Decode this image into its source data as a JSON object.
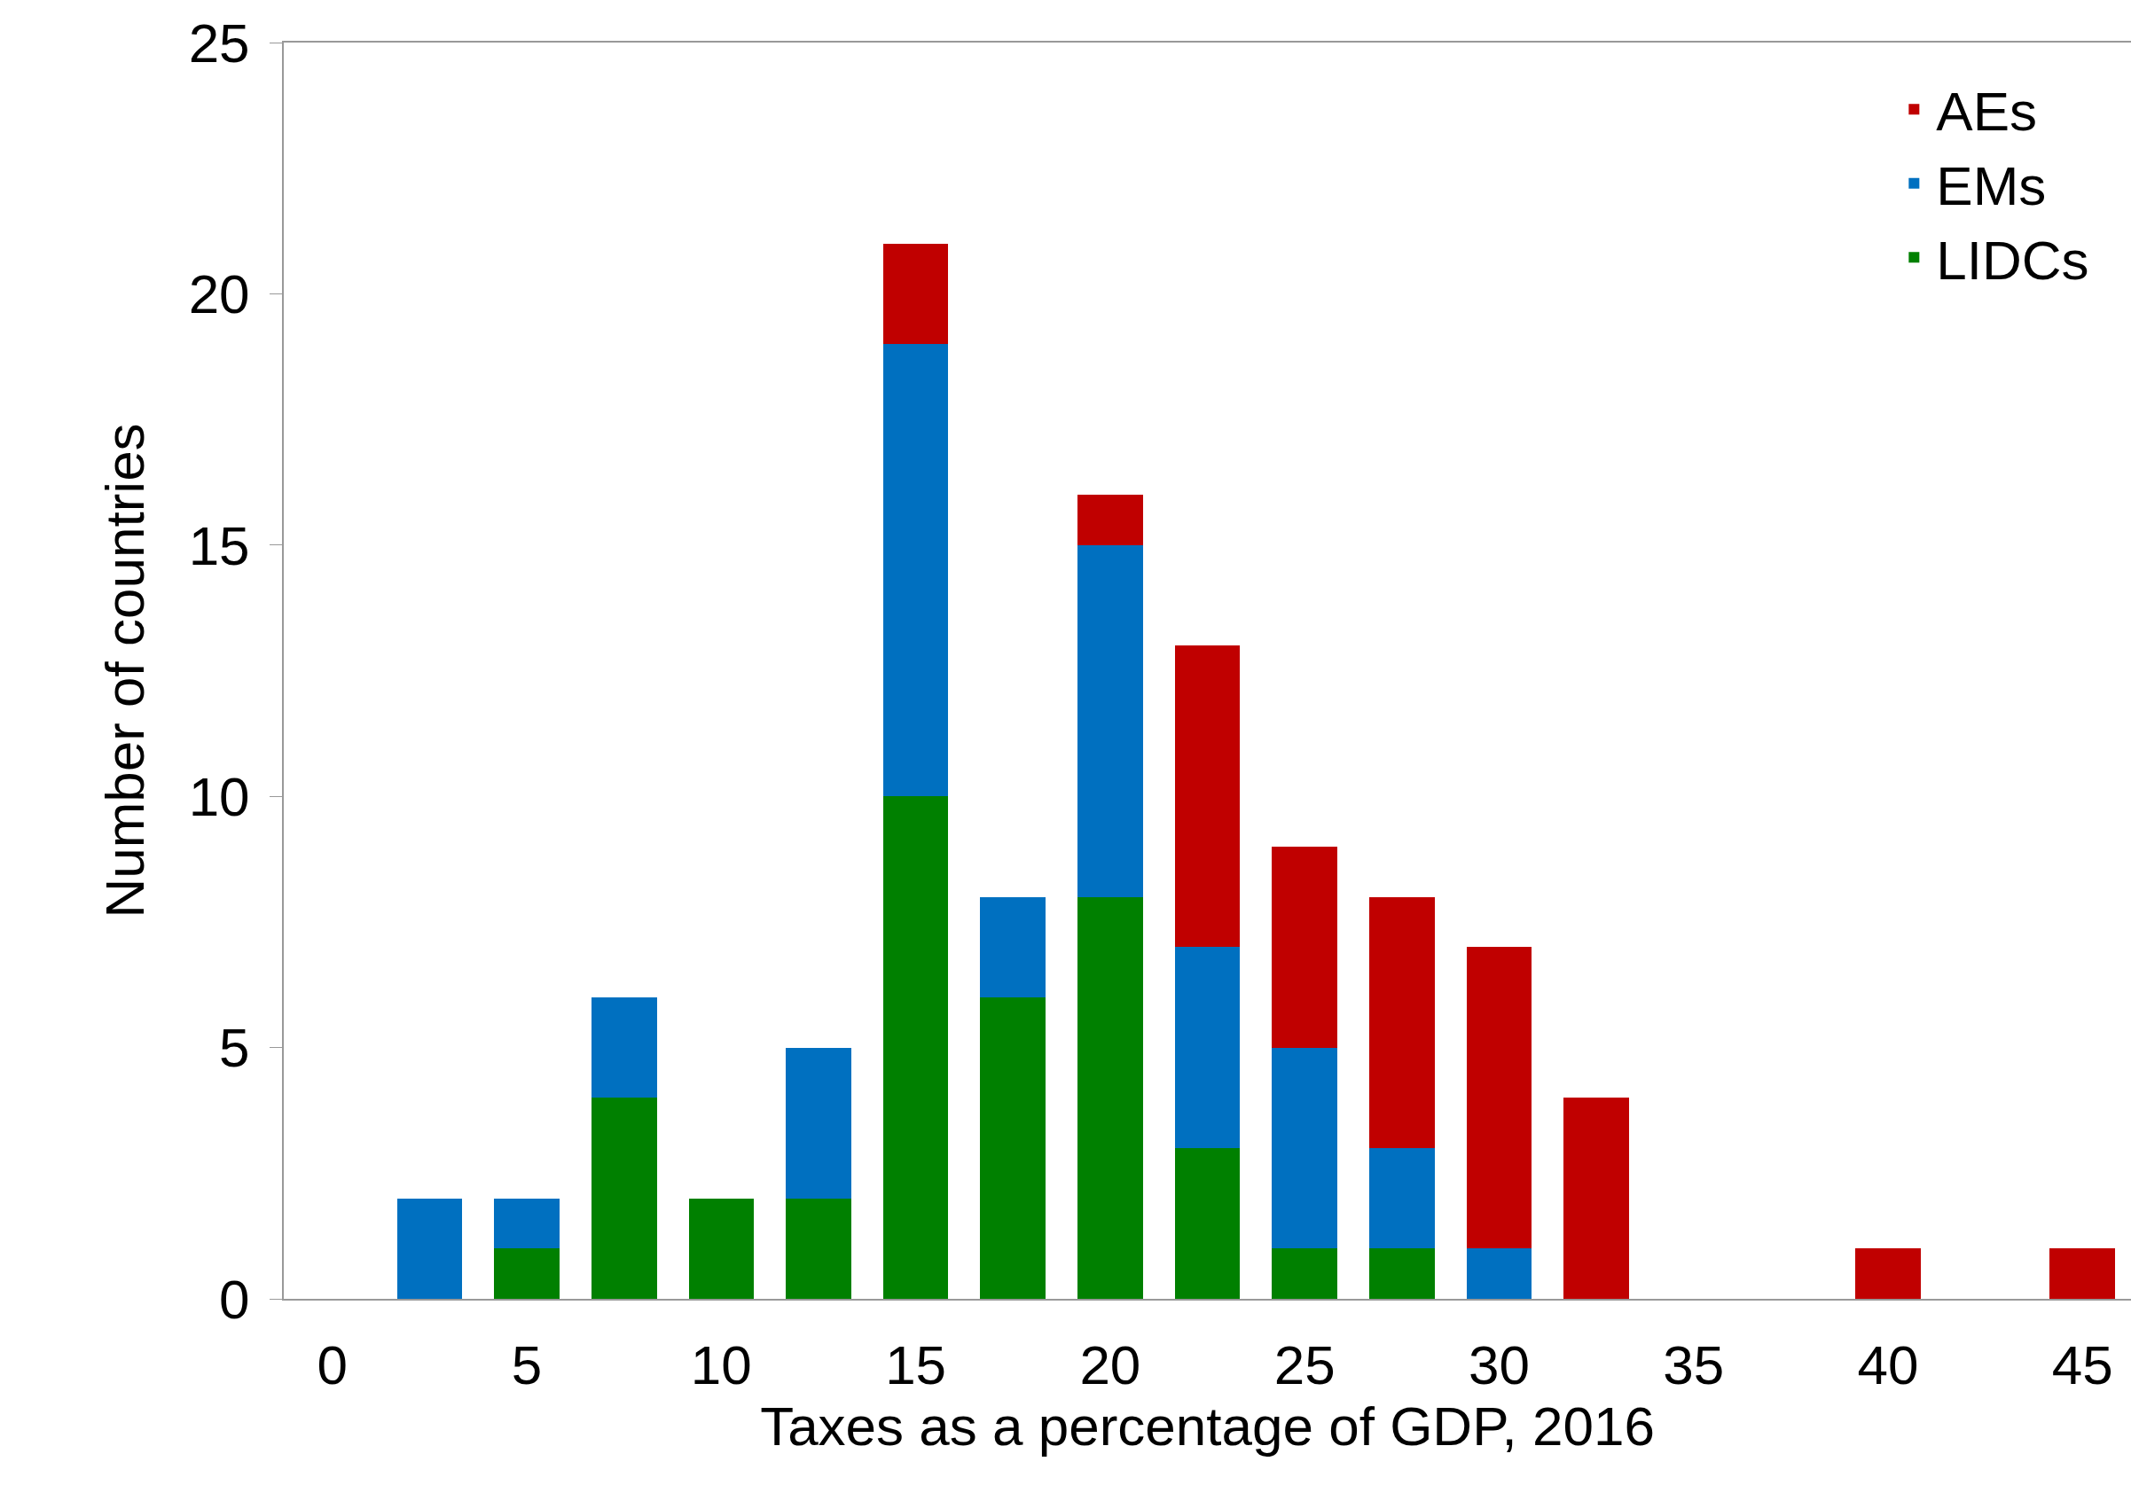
{
  "chart_data": {
    "type": "bar",
    "stacked": true,
    "xlabel": "Taxes as a percentage of GDP, 2016",
    "ylabel": "Number of countries",
    "x": [
      2.5,
      5,
      7.5,
      10,
      12.5,
      15,
      17.5,
      20,
      22.5,
      25,
      27.5,
      30,
      32.5,
      35,
      37.5,
      40,
      42.5,
      45
    ],
    "series": [
      {
        "name": "LIDCs",
        "color": "#008000",
        "values": [
          0,
          1,
          4,
          2,
          2,
          10,
          6,
          8,
          3,
          1,
          1,
          0,
          0,
          0,
          0,
          0,
          0,
          0
        ]
      },
      {
        "name": "EMs",
        "color": "#0070c0",
        "values": [
          2,
          1,
          2,
          0,
          3,
          9,
          2,
          7,
          4,
          4,
          2,
          1,
          0,
          0,
          0,
          0,
          0,
          0
        ]
      },
      {
        "name": "AEs",
        "color": "#c00000",
        "values": [
          0,
          0,
          0,
          0,
          0,
          2,
          0,
          1,
          6,
          4,
          5,
          6,
          4,
          0,
          0,
          1,
          0,
          1
        ]
      }
    ],
    "xlim": [
      -1.25,
      46.25
    ],
    "xticks": [
      0,
      5,
      10,
      15,
      20,
      25,
      30,
      35,
      40,
      45
    ],
    "ylim": [
      0,
      25
    ],
    "yticks": [
      0,
      5,
      10,
      15,
      20,
      25
    ],
    "grid": false,
    "legend": "top right"
  }
}
